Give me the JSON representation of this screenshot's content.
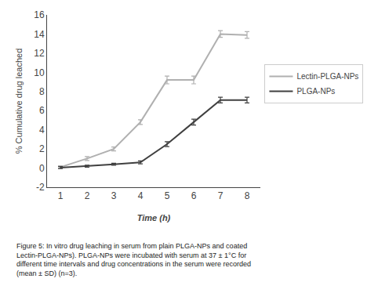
{
  "chart_data": {
    "type": "line",
    "x": [
      1,
      2,
      3,
      4,
      5,
      6,
      7,
      8
    ],
    "series": [
      {
        "name": "Lectin-PLGA-NPs",
        "color": "#b0b0b0",
        "values": [
          0.1,
          1.0,
          2.0,
          4.8,
          9.2,
          9.2,
          14.0,
          13.9
        ],
        "errors": [
          0.15,
          0.2,
          0.2,
          0.25,
          0.4,
          0.4,
          0.35,
          0.35
        ]
      },
      {
        "name": "PLGA-NPs",
        "color": "#404040",
        "values": [
          0.05,
          0.2,
          0.4,
          0.6,
          2.5,
          4.8,
          7.1,
          7.1
        ],
        "errors": [
          0.1,
          0.1,
          0.1,
          0.15,
          0.25,
          0.3,
          0.3,
          0.3
        ]
      }
    ],
    "xlabel": "Time (h)",
    "ylabel": "% Cumulative drug leached",
    "xlim": [
      0.5,
      8.5
    ],
    "ylim": [
      -2,
      16
    ],
    "xticks": [
      1,
      2,
      3,
      4,
      5,
      6,
      7,
      8
    ],
    "yticks": [
      -2,
      0,
      2,
      4,
      6,
      8,
      10,
      12,
      14,
      16
    ],
    "grid": false,
    "legend": "right",
    "annotations": [
      "Figure 5: In vitro drug leaching in serum from plain PLGA-NPs and coated\nLectin-PLGA-NPs). PLGA-NPs were incubated with serum at 37 ± 1°C for\ndifferent time intervals and drug concentrations in the serum were recorded\n(mean ± SD) (n=3)."
    ]
  }
}
